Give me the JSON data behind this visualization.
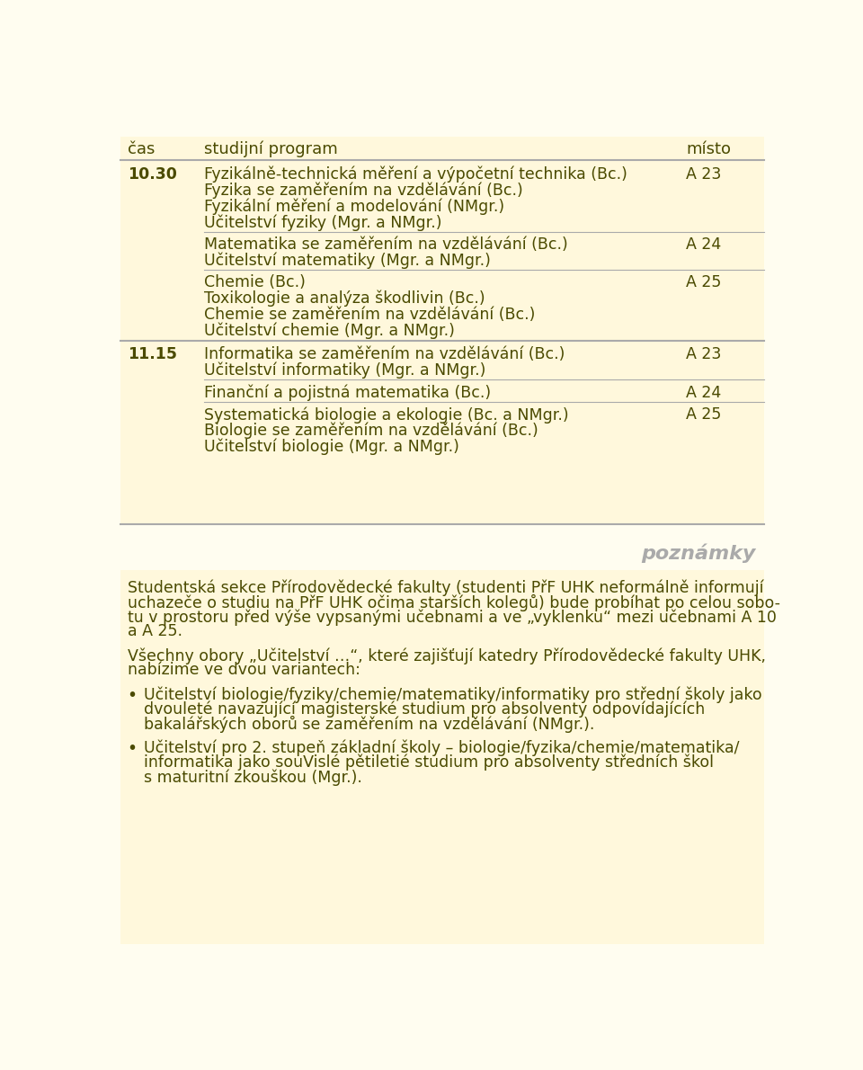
{
  "bg_color": "#FFFDF0",
  "table_bg": "#FFF8DC",
  "text_color": "#4A4A00",
  "gray_text": "#AAAAAA",
  "line_color": "#AAAAAA",
  "header_row": {
    "cas": "čas",
    "program": "studijní program",
    "misto": "místo"
  },
  "rows": [
    {
      "cas": "10.30",
      "subgroups": [
        {
          "programs": [
            "Fyzikálně-technická měření a výpočetní technika (Bc.)",
            "Fyzika se zaměřením na vzdělávání (Bc.)",
            "Fyzikální měření a modelování (NMgr.)",
            "Učitelství fyziky (Mgr. a NMgr.)"
          ],
          "misto": "A 23"
        },
        {
          "programs": [
            "Matematika se zaměřením na vzdělávání (Bc.)",
            "Učitelství matematiky (Mgr. a NMgr.)"
          ],
          "misto": "A 24"
        },
        {
          "programs": [
            "Chemie (Bc.)",
            "Toxikologie a analýza škodlivin (Bc.)",
            "Chemie se zaměřením na vzdělávání (Bc.)",
            "Učitelství chemie (Mgr. a NMgr.)"
          ],
          "misto": "A 25"
        }
      ]
    },
    {
      "cas": "11.15",
      "subgroups": [
        {
          "programs": [
            "Informatika se zaměřením na vzdělávání (Bc.)",
            "Učitelství informatiky (Mgr. a NMgr.)"
          ],
          "misto": "A 23"
        },
        {
          "programs": [
            "Finanční a pojistná matematika (Bc.)"
          ],
          "misto": "A 24"
        },
        {
          "programs": [
            "Systematická biologie a ekologie (Bc. a NMgr.)",
            "Biologie se zaměřením na vzdělávání (Bc.)",
            "Učitelství biologie (Mgr. a NMgr.)"
          ],
          "misto": "A 25"
        }
      ]
    }
  ],
  "poznamky_label": "poznámky",
  "font_size_header": 13,
  "font_size_body": 12.5,
  "font_size_poznamky": 16,
  "font_size_notes": 12.5
}
